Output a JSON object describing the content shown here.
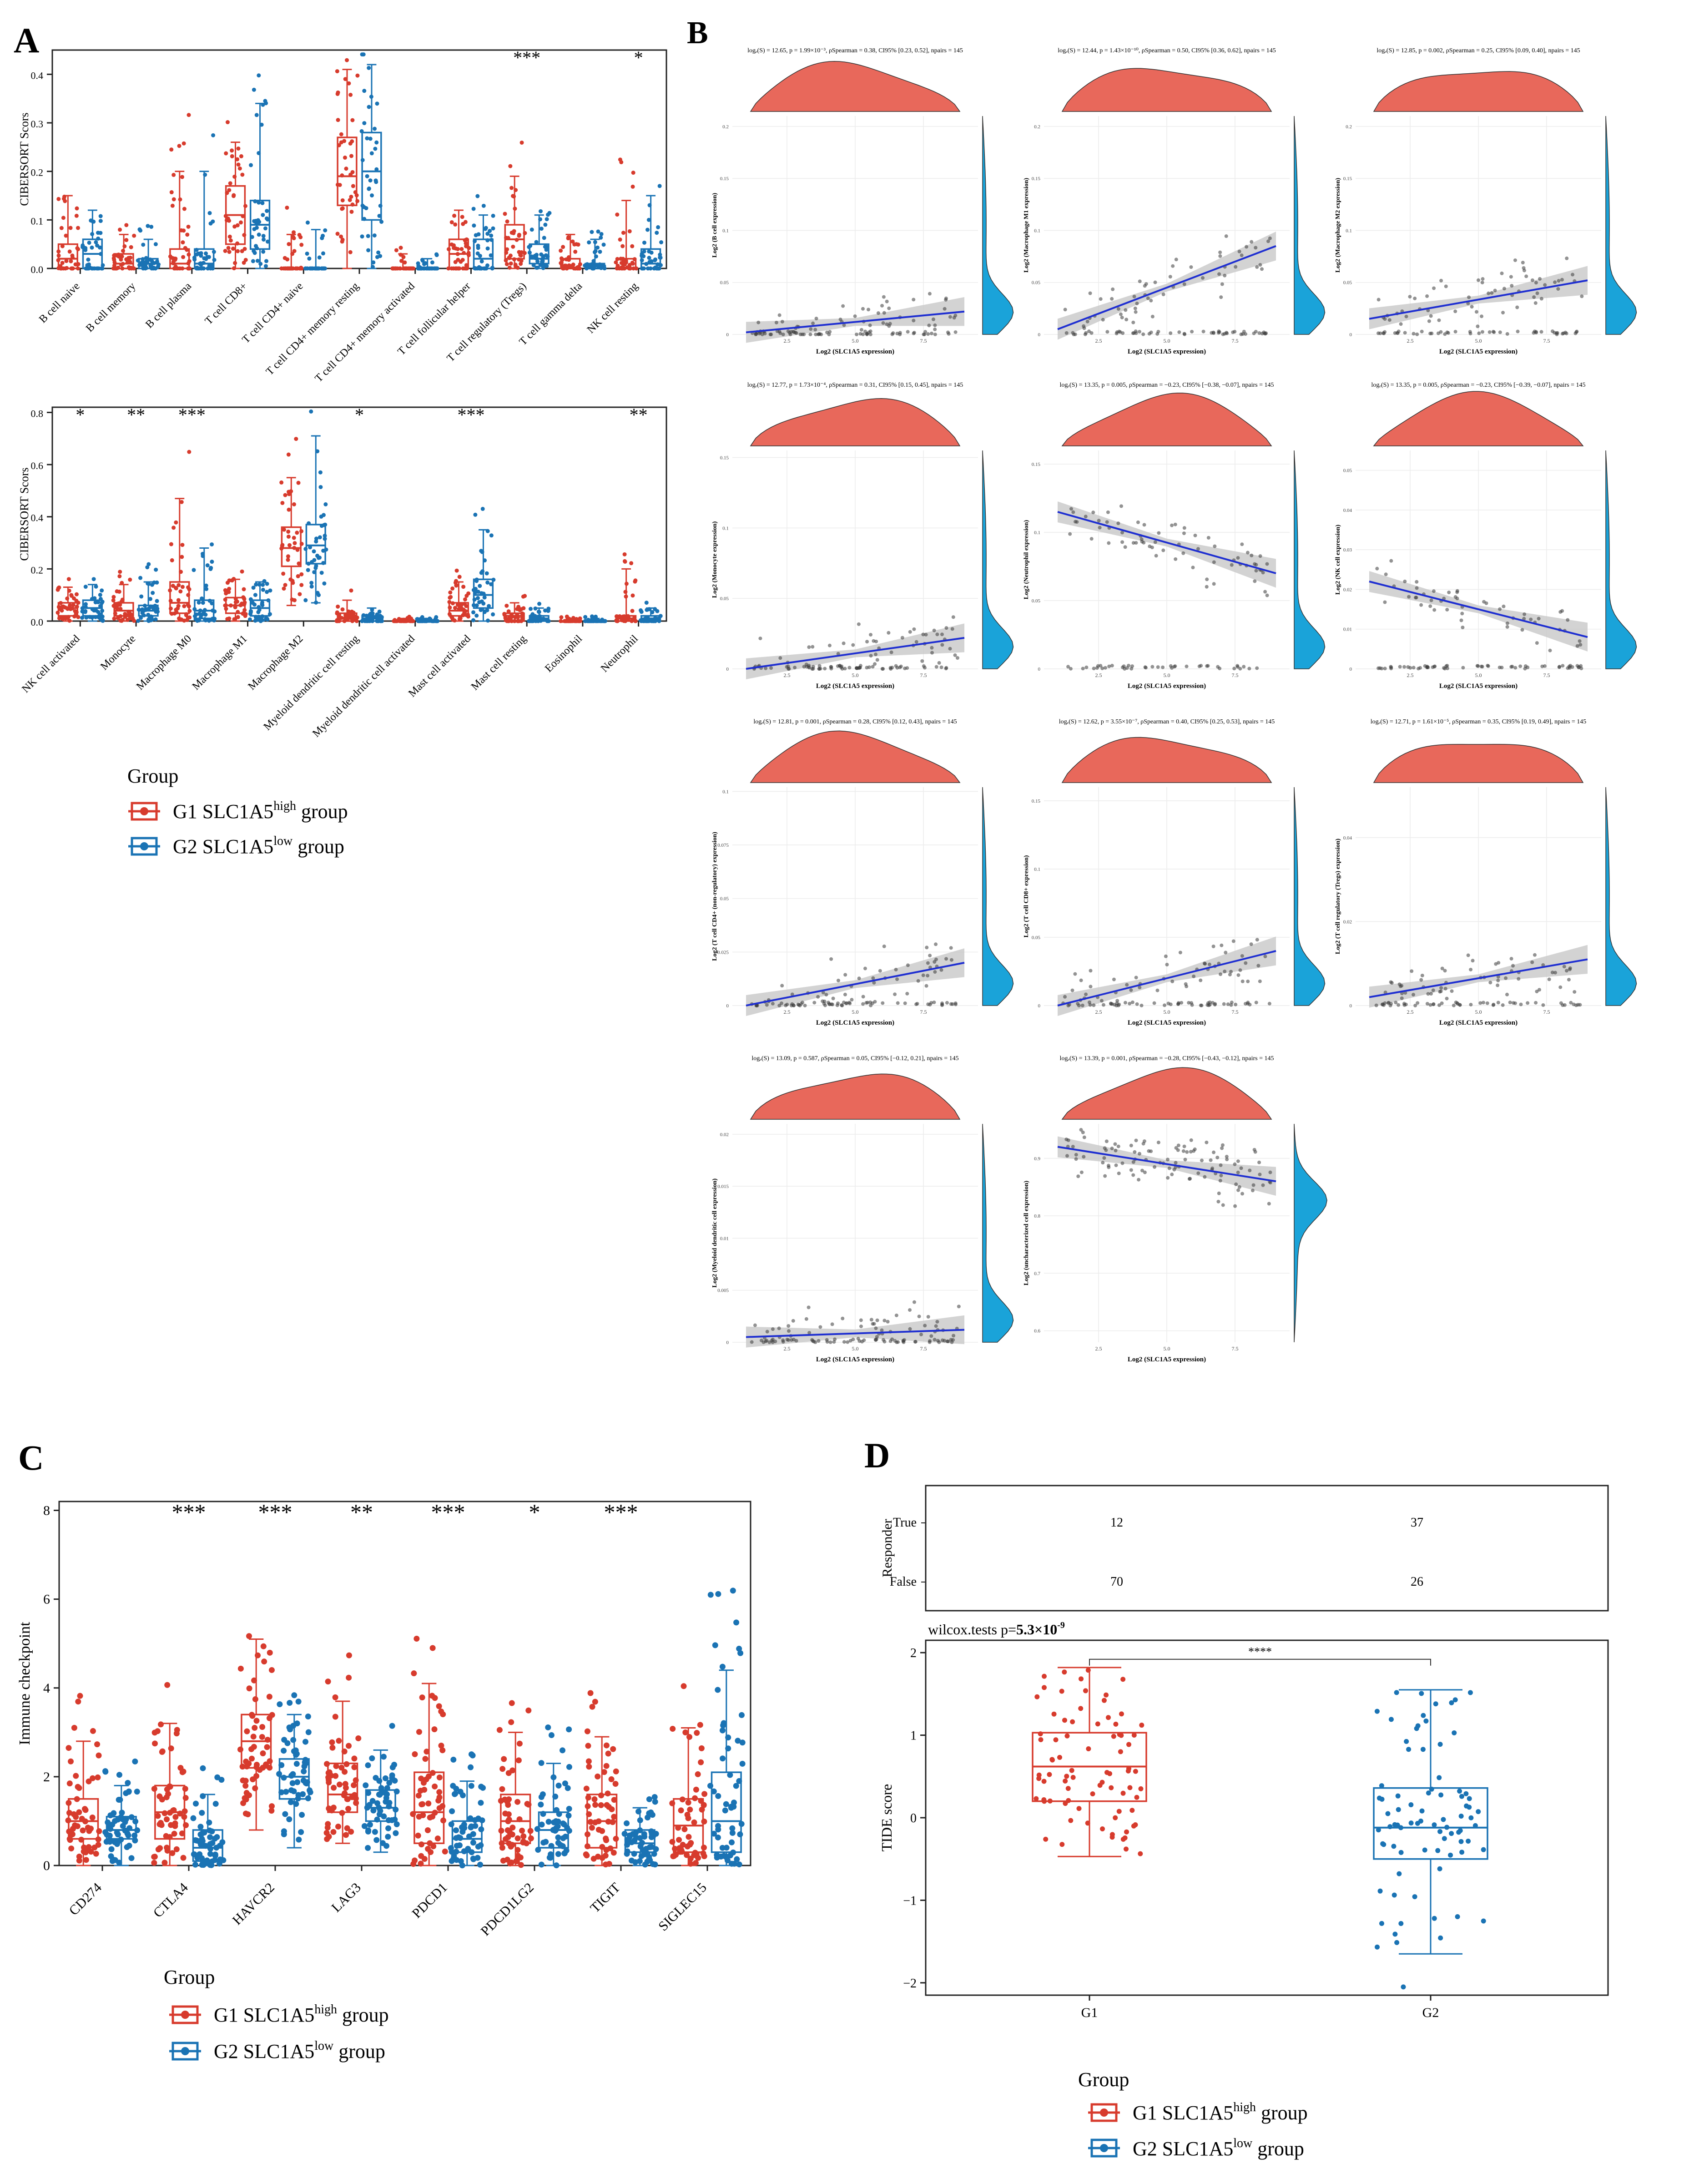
{
  "colors": {
    "g1": "#d73b2d",
    "g2": "#1a73b4",
    "density_top": "#e8685b",
    "density_side": "#1aa3d9",
    "fit": "#1f2fd1",
    "band": "#c8c8c8",
    "point": "#3a3a3a"
  },
  "panel_labels": {
    "a": "A",
    "b": "B",
    "c": "C",
    "d": "D"
  },
  "legend": {
    "title": "Group",
    "g1_prefix": "G1  SLC1A5",
    "g1_sup": "high",
    "g1_suffix": " group",
    "g2_prefix": "G2  SLC1A5",
    "g2_sup": "low",
    "g2_suffix": " group"
  },
  "chart_data": [
    {
      "id": "A-top",
      "type": "box",
      "ylabel": "CIBERSORT Scors",
      "ylim": [
        0,
        0.45
      ],
      "yticks": [
        0.0,
        0.1,
        0.2,
        0.3,
        0.4
      ],
      "categories": [
        "B cell naive",
        "B cell memory",
        "B cell plasma",
        "T cell CD8+",
        "T cell CD4+ naive",
        "T cell CD4+ memory resting",
        "T cell CD4+ memory activated",
        "T cell follicular helper",
        "T cell regulatory (Tregs)",
        "T cell gamma delta",
        "NK cell resting"
      ],
      "significance": [
        "",
        "",
        "",
        "",
        "",
        "",
        "",
        "",
        "***",
        "",
        "*"
      ],
      "series": [
        {
          "name": "G1",
          "q1": [
            0.0,
            0.0,
            0.0,
            0.05,
            0.0,
            0.13,
            0.0,
            0.0,
            0.02,
            0.0,
            0.0
          ],
          "median": [
            0.02,
            0.01,
            0.01,
            0.11,
            0.0,
            0.19,
            0.0,
            0.03,
            0.06,
            0.0,
            0.0
          ],
          "q3": [
            0.05,
            0.03,
            0.04,
            0.17,
            0.0,
            0.27,
            0.0,
            0.06,
            0.09,
            0.02,
            0.02
          ],
          "max": [
            0.15,
            0.07,
            0.2,
            0.26,
            0.07,
            0.41,
            0.03,
            0.12,
            0.19,
            0.07,
            0.14
          ]
        },
        {
          "name": "G2",
          "q1": [
            0.0,
            0.0,
            0.0,
            0.04,
            0.0,
            0.1,
            0.0,
            0.0,
            0.01,
            0.0,
            0.0
          ],
          "median": [
            0.03,
            0.01,
            0.01,
            0.09,
            0.0,
            0.2,
            0.0,
            0.02,
            0.02,
            0.0,
            0.01
          ],
          "q3": [
            0.06,
            0.02,
            0.04,
            0.14,
            0.0,
            0.28,
            0.0,
            0.06,
            0.05,
            0.01,
            0.04
          ],
          "max": [
            0.12,
            0.06,
            0.2,
            0.34,
            0.08,
            0.42,
            0.02,
            0.11,
            0.11,
            0.06,
            0.15
          ]
        }
      ]
    },
    {
      "id": "A-bottom",
      "type": "box",
      "ylabel": "CIBERSORT Scors",
      "ylim": [
        0,
        0.82
      ],
      "yticks": [
        0.0,
        0.2,
        0.4,
        0.6,
        0.8
      ],
      "categories": [
        "NK cell activated",
        "Monocyte",
        "Macrophage M0",
        "Macrophage M1",
        "Macrophage M2",
        "Myeloid dendritic cell resting",
        "Myeloid dendritic cell activated",
        "Mast cell activated",
        "Mast cell resting",
        "Eosinophil",
        "Neutrophil"
      ],
      "significance": [
        "*",
        "**",
        "***",
        "",
        "",
        "*",
        "",
        "***",
        "",
        "",
        "**"
      ],
      "series": [
        {
          "name": "G1",
          "q1": [
            0.02,
            0.02,
            0.03,
            0.03,
            0.21,
            0.0,
            0.0,
            0.02,
            0.0,
            0.0,
            0.0
          ],
          "median": [
            0.05,
            0.04,
            0.07,
            0.06,
            0.28,
            0.01,
            0.0,
            0.04,
            0.02,
            0.0,
            0.01
          ],
          "q3": [
            0.07,
            0.07,
            0.15,
            0.09,
            0.36,
            0.03,
            0.0,
            0.07,
            0.03,
            0.0,
            0.02
          ],
          "max": [
            0.13,
            0.14,
            0.47,
            0.16,
            0.55,
            0.08,
            0.01,
            0.15,
            0.07,
            0.01,
            0.2
          ]
        },
        {
          "name": "G2",
          "q1": [
            0.02,
            0.02,
            0.01,
            0.02,
            0.22,
            0.0,
            0.0,
            0.05,
            0.0,
            0.0,
            0.0
          ],
          "median": [
            0.05,
            0.04,
            0.04,
            0.05,
            0.29,
            0.01,
            0.0,
            0.1,
            0.01,
            0.0,
            0.01
          ],
          "q3": [
            0.08,
            0.06,
            0.08,
            0.08,
            0.37,
            0.02,
            0.0,
            0.16,
            0.02,
            0.0,
            0.02
          ],
          "max": [
            0.14,
            0.15,
            0.28,
            0.15,
            0.71,
            0.05,
            0.01,
            0.35,
            0.05,
            0.01,
            0.05
          ]
        }
      ]
    },
    {
      "id": "B",
      "type": "scatter",
      "xlabel": "Log2 (SLC1A5 expression)",
      "subplots": [
        {
          "stat": "logₑ(S) = 12.65, p = 1.99×10⁻³, ρSpearman = 0.38, CI95% [0.23, 0.52], npairs = 145",
          "ylabel": "Log2 (B cell expression)",
          "yticks": [
            0.0,
            0.05,
            0.1,
            0.15,
            0.2
          ],
          "ymax": 0.21,
          "fit": [
            0.002,
            0.022
          ]
        },
        {
          "stat": "logₑ(S) = 12.44, p = 1.43×10⁻¹⁰, ρSpearman = 0.50, CI95% [0.36, 0.62], npairs = 145",
          "ylabel": "Log2 (Macrophage M1 expression)",
          "yticks": [
            0.0,
            0.05,
            0.1,
            0.15,
            0.2
          ],
          "ymax": 0.21,
          "fit": [
            0.005,
            0.085
          ]
        },
        {
          "stat": "logₑ(S) = 12.85, p = 0.002, ρSpearman = 0.25, CI95% [0.09, 0.40], npairs = 145",
          "ylabel": "Log2 (Macrophage M2 expression)",
          "yticks": [
            0.0,
            0.05,
            0.1,
            0.15,
            0.2
          ],
          "ymax": 0.21,
          "fit": [
            0.015,
            0.052
          ]
        },
        {
          "stat": "logₑ(S) = 12.77, p = 1.73×10⁻⁴, ρSpearman = 0.31, CI95% [0.15, 0.45], npairs = 145",
          "ylabel": "Log2 (Monocyte expression)",
          "yticks": [
            0.0,
            0.05,
            0.1,
            0.15
          ],
          "ymax": 0.155,
          "fit": [
            0.0,
            0.022
          ]
        },
        {
          "stat": "logₑ(S) = 13.35, p = 0.005, ρSpearman = −0.23, CI95% [−0.38, −0.07], npairs = 145",
          "ylabel": "Log2 (Neutrophil expression)",
          "yticks": [
            0.0,
            0.05,
            0.1,
            0.15
          ],
          "ymax": 0.16,
          "fit": [
            0.115,
            0.07
          ]
        },
        {
          "stat": "logₑ(S) = 13.35, p = 0.005, ρSpearman = −0.23, CI95% [−0.39, −0.07], npairs = 145",
          "ylabel": "Log2 (NK cell expression)",
          "yticks": [
            0.0,
            0.01,
            0.02,
            0.03,
            0.04,
            0.05
          ],
          "ymax": 0.055,
          "fit": [
            0.022,
            0.008
          ]
        },
        {
          "stat": "logₑ(S) = 12.81, p = 0.001, ρSpearman = 0.28, CI95% [0.12, 0.43], npairs = 145",
          "ylabel": "Log2 (T cell CD4+ (non-regulatory) expression)",
          "yticks": [
            0.0,
            0.025,
            0.05,
            0.075,
            0.1
          ],
          "ymax": 0.102,
          "fit": [
            0.0,
            0.02
          ]
        },
        {
          "stat": "logₑ(S) = 12.62, p = 3.55×10⁻⁷, ρSpearman = 0.40, CI95% [0.25, 0.53], npairs = 145",
          "ylabel": "Log2 (T cell CD8+ expression)",
          "yticks": [
            0.0,
            0.05,
            0.1,
            0.15
          ],
          "ymax": 0.16,
          "fit": [
            0.0,
            0.04
          ]
        },
        {
          "stat": "logₑ(S) = 12.71, p = 1.61×10⁻⁵, ρSpearman = 0.35, CI95% [0.19, 0.49], npairs = 145",
          "ylabel": "Log2 (T cell regulatory (Tregs) expression)",
          "yticks": [
            0.0,
            0.02,
            0.04
          ],
          "ymax": 0.052,
          "fit": [
            0.002,
            0.011
          ]
        },
        {
          "stat": "logₑ(S) = 13.09, p = 0.587, ρSpearman = 0.05, CI95% [−0.12, 0.21], npairs = 145",
          "ylabel": "Log2 (Myeloid dendritic cell expression)",
          "yticks": [
            0.0,
            0.005,
            0.01,
            0.015,
            0.02
          ],
          "ymax": 0.021,
          "fit": [
            0.0005,
            0.0012
          ]
        },
        {
          "stat": "logₑ(S) = 13.39, p = 0.001, ρSpearman = −0.28, CI95% [−0.43, −0.12], npairs = 145",
          "ylabel": "Log2 (uncharacterized cell expression)",
          "yticks": [
            0.6,
            0.7,
            0.8,
            0.9
          ],
          "ymax": 0.96,
          "ymin": 0.58,
          "fit": [
            0.92,
            0.86
          ]
        }
      ],
      "xticks": [
        2.5,
        5.0,
        7.5
      ]
    },
    {
      "id": "C",
      "type": "box",
      "ylabel": "Immune checkpoint",
      "ylim": [
        0,
        8.2
      ],
      "yticks": [
        0,
        2,
        4,
        6,
        8
      ],
      "categories": [
        "CD274",
        "CTLA4",
        "HAVCR2",
        "LAG3",
        "PDCD1",
        "PDCD1LG2",
        "TIGIT",
        "SIGLEC15"
      ],
      "significance": [
        "",
        "***",
        "***",
        "**",
        "***",
        "*",
        "***",
        ""
      ],
      "series": [
        {
          "name": "G1",
          "min": [
            0.0,
            0.0,
            0.8,
            0.5,
            0.0,
            0.0,
            0.0,
            0.0
          ],
          "q1": [
            0.6,
            0.6,
            2.2,
            1.2,
            0.5,
            0.5,
            0.4,
            0.3
          ],
          "median": [
            1.0,
            1.2,
            2.8,
            1.6,
            1.2,
            1.0,
            1.0,
            0.9
          ],
          "q3": [
            1.5,
            1.8,
            3.4,
            2.3,
            2.1,
            1.6,
            1.6,
            1.5
          ],
          "max": [
            2.8,
            3.2,
            5.1,
            3.7,
            4.1,
            3.0,
            2.9,
            3.1
          ]
        },
        {
          "name": "G2",
          "min": [
            0.0,
            0.0,
            0.4,
            0.3,
            0.0,
            0.0,
            0.0,
            0.0
          ],
          "q1": [
            0.6,
            0.1,
            1.5,
            1.0,
            0.3,
            0.4,
            0.3,
            0.3
          ],
          "median": [
            0.8,
            0.4,
            2.0,
            1.3,
            0.6,
            0.8,
            0.5,
            1.0
          ],
          "q3": [
            1.1,
            0.8,
            2.4,
            1.7,
            1.0,
            1.2,
            0.8,
            2.1
          ],
          "max": [
            1.8,
            1.6,
            3.4,
            2.6,
            1.9,
            2.3,
            1.3,
            4.4
          ]
        }
      ]
    },
    {
      "id": "D",
      "type": "box",
      "table": {
        "ylabel": "Responder",
        "rows": [
          "True",
          "False"
        ],
        "values": {
          "True": [
            12,
            37
          ],
          "False": [
            70,
            26
          ]
        }
      },
      "subtitle_prefix": "wilcox.tests p=",
      "subtitle_value": "5.3×10",
      "subtitle_exp": "-9",
      "bracket_label": "****",
      "ylabel": "TIDE score",
      "ylim": [
        -2.15,
        2.15
      ],
      "yticks": [
        -2,
        -1,
        0,
        1,
        2
      ],
      "categories": [
        "G1",
        "G2"
      ],
      "stats": {
        "min": [
          -0.47,
          -1.65
        ],
        "q1": [
          0.2,
          -0.5
        ],
        "median": [
          0.62,
          -0.12
        ],
        "q3": [
          1.03,
          0.36
        ],
        "max": [
          1.82,
          1.55
        ]
      }
    }
  ]
}
